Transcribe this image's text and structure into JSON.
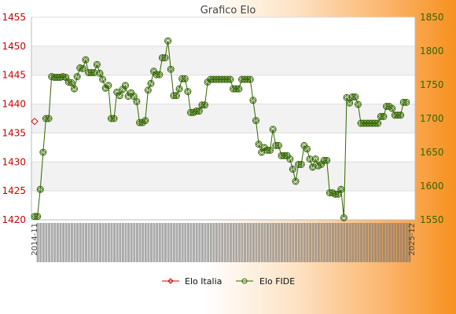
{
  "chart_data": {
    "type": "line",
    "title": "Grafico Elo",
    "x_first_label": "2014-11",
    "x_last_label": "2025-12",
    "x_label_count": 134,
    "y_left": {
      "min": 1420,
      "max": 1455,
      "ticks": [
        1420,
        1425,
        1430,
        1435,
        1440,
        1445,
        1450,
        1455
      ],
      "color": "#cc0000"
    },
    "y_right": {
      "min": 1550,
      "max": 1850,
      "ticks": [
        1550,
        1600,
        1650,
        1700,
        1750,
        1800,
        1850
      ],
      "color": "#336600"
    },
    "grid": true,
    "legend": {
      "placement": "bottom",
      "entries": [
        "Elo Italia",
        "Elo FIDE"
      ]
    },
    "series": [
      {
        "name": "Elo Italia",
        "axis": "left",
        "color": "#cc0000",
        "marker": "diamond",
        "values": [
          1437
        ]
      },
      {
        "name": "Elo FIDE",
        "axis": "right",
        "color": "#336600",
        "marker": "circle",
        "values": [
          1555,
          1555,
          1595,
          1650,
          1700,
          1700,
          1762,
          1761,
          1761,
          1761,
          1762,
          1761,
          1754,
          1753,
          1744,
          1762,
          1775,
          1774,
          1787,
          1768,
          1768,
          1768,
          1780,
          1767,
          1758,
          1745,
          1749,
          1700,
          1700,
          1739,
          1734,
          1743,
          1749,
          1733,
          1738,
          1733,
          1725,
          1694,
          1694,
          1697,
          1742,
          1752,
          1770,
          1765,
          1765,
          1790,
          1790,
          1815,
          1773,
          1734,
          1734,
          1744,
          1759,
          1759,
          1740,
          1709,
          1709,
          1711,
          1711,
          1720,
          1720,
          1754,
          1758,
          1758,
          1758,
          1758,
          1758,
          1758,
          1758,
          1758,
          1744,
          1744,
          1744,
          1758,
          1758,
          1758,
          1758,
          1727,
          1697,
          1662,
          1650,
          1657,
          1653,
          1653,
          1684,
          1660,
          1660,
          1645,
          1645,
          1645,
          1640,
          1625,
          1607,
          1632,
          1632,
          1660,
          1655,
          1640,
          1628,
          1640,
          1630,
          1632,
          1638,
          1638,
          1590,
          1590,
          1588,
          1588,
          1595,
          1553,
          1731,
          1723,
          1732,
          1732,
          1721,
          1693,
          1693,
          1693,
          1693,
          1693,
          1693,
          1693,
          1703,
          1703,
          1718,
          1718,
          1715,
          1705,
          1705,
          1705,
          1724,
          1724
        ]
      }
    ]
  }
}
